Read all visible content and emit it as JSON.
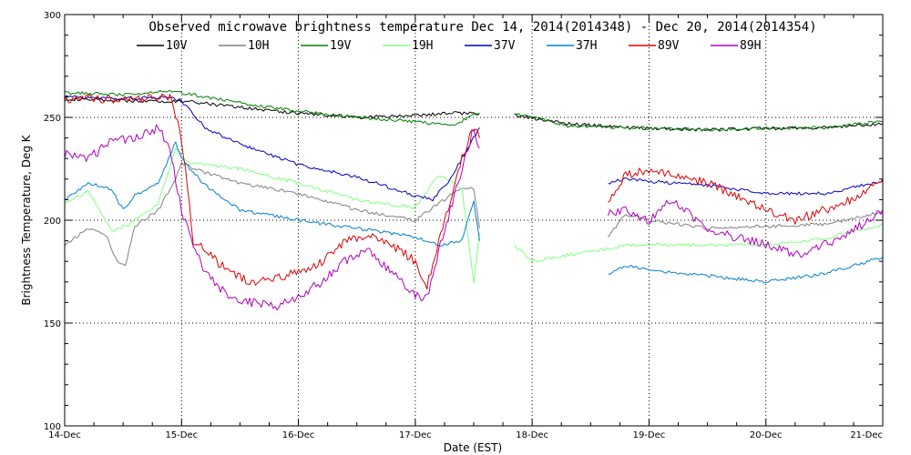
{
  "chart_data": {
    "type": "line",
    "title": "Observed microwave brightness temperature Dec 14, 2014(2014348) - Dec 20, 2014(2014354)",
    "xlabel": "Date (EST)",
    "ylabel": "Brightness Temperature, Deg K",
    "x_ticks": [
      "14-Dec",
      "15-Dec",
      "16-Dec",
      "17-Dec",
      "18-Dec",
      "19-Dec",
      "20-Dec",
      "21-Dec"
    ],
    "xlim": [
      0,
      7
    ],
    "x_unit": "days since 14-Dec",
    "ylim": [
      100,
      300
    ],
    "y_ticks": [
      100,
      150,
      200,
      250,
      300
    ],
    "grid": true,
    "legend_position": "top",
    "series": [
      {
        "name": "10V",
        "color": "#000000",
        "segments": [
          [
            [
              0,
              259
            ],
            [
              0.5,
              258
            ],
            [
              1.0,
              258
            ],
            [
              1.5,
              255
            ],
            [
              2.0,
              252
            ],
            [
              2.5,
              250
            ],
            [
              3.0,
              251
            ],
            [
              3.3,
              252
            ],
            [
              3.55,
              252
            ]
          ],
          [
            [
              3.85,
              251
            ],
            [
              4.3,
              247
            ],
            [
              4.8,
              245
            ],
            [
              5.5,
              244
            ],
            [
              6.5,
              245
            ],
            [
              7.0,
              247
            ]
          ]
        ]
      },
      {
        "name": "10H",
        "color": "#808080",
        "segments": [
          [
            [
              0,
              188
            ],
            [
              0.2,
              196
            ],
            [
              0.35,
              193
            ],
            [
              0.45,
              180
            ],
            [
              0.52,
              178
            ],
            [
              0.6,
              197
            ],
            [
              0.8,
              205
            ],
            [
              0.95,
              220
            ],
            [
              1.0,
              228
            ],
            [
              1.1,
              225
            ],
            [
              1.5,
              218
            ],
            [
              2.0,
              213
            ],
            [
              2.5,
              205
            ],
            [
              3.0,
              200
            ],
            [
              3.2,
              208
            ],
            [
              3.4,
              216
            ],
            [
              3.5,
              215
            ],
            [
              3.55,
              196
            ]
          ],
          [
            [
              4.65,
              192
            ],
            [
              4.8,
              203
            ],
            [
              5.0,
              200
            ],
            [
              5.5,
              196
            ],
            [
              6.0,
              197
            ],
            [
              6.5,
              198
            ],
            [
              7.0,
              204
            ]
          ]
        ]
      },
      {
        "name": "19V",
        "color": "#008000",
        "segments": [
          [
            [
              0,
              262
            ],
            [
              0.5,
              261
            ],
            [
              0.9,
              263
            ],
            [
              1.0,
              262
            ],
            [
              1.5,
              257
            ],
            [
              2.0,
              253
            ],
            [
              2.5,
              250
            ],
            [
              3.0,
              248
            ],
            [
              3.3,
              246
            ],
            [
              3.55,
              252
            ]
          ],
          [
            [
              3.85,
              252
            ],
            [
              4.3,
              246
            ],
            [
              4.8,
              245
            ],
            [
              5.5,
              244
            ],
            [
              6.5,
              245
            ],
            [
              7.0,
              248
            ]
          ]
        ]
      },
      {
        "name": "19H",
        "color": "#80ff80",
        "segments": [
          [
            [
              0,
              208
            ],
            [
              0.2,
              214
            ],
            [
              0.4,
              195
            ],
            [
              0.55,
              198
            ],
            [
              0.8,
              208
            ],
            [
              0.95,
              235
            ],
            [
              1.0,
              230
            ],
            [
              1.1,
              228
            ],
            [
              1.5,
              225
            ],
            [
              2.0,
              218
            ],
            [
              2.5,
              210
            ],
            [
              3.0,
              206
            ],
            [
              3.2,
              222
            ],
            [
              3.4,
              215
            ],
            [
              3.5,
              170
            ],
            [
              3.55,
              194
            ]
          ],
          [
            [
              3.85,
              188
            ],
            [
              4.0,
              180
            ],
            [
              4.3,
              183
            ],
            [
              4.65,
              186
            ],
            [
              4.8,
              188
            ],
            [
              5.5,
              188
            ],
            [
              6.0,
              188
            ],
            [
              6.5,
              191
            ],
            [
              7.0,
              198
            ]
          ]
        ]
      },
      {
        "name": "37V",
        "color": "#0000c0",
        "segments": [
          [
            [
              0,
              260
            ],
            [
              0.5,
              259
            ],
            [
              0.9,
              260
            ],
            [
              1.0,
              258
            ],
            [
              1.2,
              245
            ],
            [
              1.5,
              237
            ],
            [
              2.0,
              227
            ],
            [
              2.5,
              221
            ],
            [
              3.0,
              212
            ],
            [
              3.15,
              210
            ],
            [
              3.3,
              220
            ],
            [
              3.5,
              240
            ],
            [
              3.55,
              245
            ]
          ],
          [
            [
              4.65,
              218
            ],
            [
              4.8,
              220
            ],
            [
              5.0,
              219
            ],
            [
              5.5,
              217
            ],
            [
              6.0,
              213
            ],
            [
              6.5,
              213
            ],
            [
              7.0,
              219
            ]
          ]
        ]
      },
      {
        "name": "37H",
        "color": "#0080d0",
        "segments": [
          [
            [
              0,
              210
            ],
            [
              0.2,
              218
            ],
            [
              0.4,
              215
            ],
            [
              0.5,
              205
            ],
            [
              0.6,
              212
            ],
            [
              0.8,
              218
            ],
            [
              0.95,
              238
            ],
            [
              1.0,
              230
            ],
            [
              1.2,
              217
            ],
            [
              1.5,
              205
            ],
            [
              2.0,
              200
            ],
            [
              2.5,
              196
            ],
            [
              3.0,
              192
            ],
            [
              3.2,
              188
            ],
            [
              3.4,
              190
            ],
            [
              3.5,
              210
            ],
            [
              3.55,
              190
            ]
          ],
          [
            [
              4.65,
              173
            ],
            [
              4.8,
              178
            ],
            [
              5.0,
              176
            ],
            [
              5.5,
              173
            ],
            [
              6.0,
              170
            ],
            [
              6.5,
              174
            ],
            [
              7.0,
              182
            ]
          ]
        ]
      },
      {
        "name": "89V",
        "color": "#e00000",
        "segments": [
          [
            [
              0,
              259
            ],
            [
              0.5,
              259
            ],
            [
              0.9,
              260
            ],
            [
              1.0,
              240
            ],
            [
              1.1,
              190
            ],
            [
              1.2,
              185
            ],
            [
              1.4,
              175
            ],
            [
              1.6,
              170
            ],
            [
              1.8,
              172
            ],
            [
              2.0,
              175
            ],
            [
              2.2,
              180
            ],
            [
              2.4,
              190
            ],
            [
              2.6,
              192
            ],
            [
              2.8,
              188
            ],
            [
              3.0,
              180
            ],
            [
              3.1,
              168
            ],
            [
              3.2,
              190
            ],
            [
              3.3,
              210
            ],
            [
              3.4,
              230
            ],
            [
              3.5,
              245
            ],
            [
              3.55,
              240
            ]
          ],
          [
            [
              4.65,
              210
            ],
            [
              4.8,
              222
            ],
            [
              5.0,
              225
            ],
            [
              5.2,
              222
            ],
            [
              5.5,
              218
            ],
            [
              6.0,
              205
            ],
            [
              6.25,
              200
            ],
            [
              6.5,
              205
            ],
            [
              6.75,
              210
            ],
            [
              7.0,
              220
            ]
          ]
        ]
      },
      {
        "name": "89H",
        "color": "#b000c0",
        "segments": [
          [
            [
              0,
              232
            ],
            [
              0.2,
              230
            ],
            [
              0.4,
              238
            ],
            [
              0.6,
              240
            ],
            [
              0.8,
              245
            ],
            [
              0.9,
              235
            ],
            [
              1.0,
              205
            ],
            [
              1.1,
              188
            ],
            [
              1.2,
              175
            ],
            [
              1.4,
              163
            ],
            [
              1.6,
              160
            ],
            [
              1.8,
              158
            ],
            [
              2.0,
              163
            ],
            [
              2.2,
              170
            ],
            [
              2.4,
              180
            ],
            [
              2.6,
              185
            ],
            [
              2.8,
              175
            ],
            [
              3.0,
              163
            ],
            [
              3.1,
              162
            ],
            [
              3.2,
              185
            ],
            [
              3.3,
              205
            ],
            [
              3.4,
              225
            ],
            [
              3.5,
              245
            ],
            [
              3.55,
              235
            ]
          ],
          [
            [
              4.65,
              203
            ],
            [
              4.8,
              205
            ],
            [
              5.0,
              200
            ],
            [
              5.2,
              210
            ],
            [
              5.5,
              195
            ],
            [
              6.0,
              188
            ],
            [
              6.25,
              183
            ],
            [
              6.5,
              188
            ],
            [
              6.75,
              195
            ],
            [
              7.0,
              205
            ]
          ]
        ]
      }
    ]
  }
}
